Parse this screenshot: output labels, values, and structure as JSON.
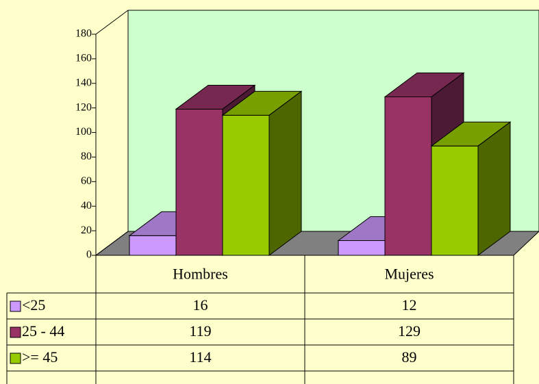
{
  "chart_data": {
    "type": "bar3d",
    "categories": [
      "Hombres",
      "Mujeres"
    ],
    "series": [
      {
        "name": "<25",
        "color": "#CC99FF",
        "values": [
          16,
          12
        ]
      },
      {
        "name": "25 - 44",
        "color": "#993366",
        "values": [
          119,
          129
        ]
      },
      {
        "name": ">= 45",
        "color": "#99CC00",
        "values": [
          114,
          89
        ]
      }
    ],
    "ylim": [
      0,
      180
    ],
    "yticks": [
      0,
      20,
      40,
      60,
      80,
      100,
      120,
      140,
      160,
      180
    ],
    "data_table": true
  }
}
